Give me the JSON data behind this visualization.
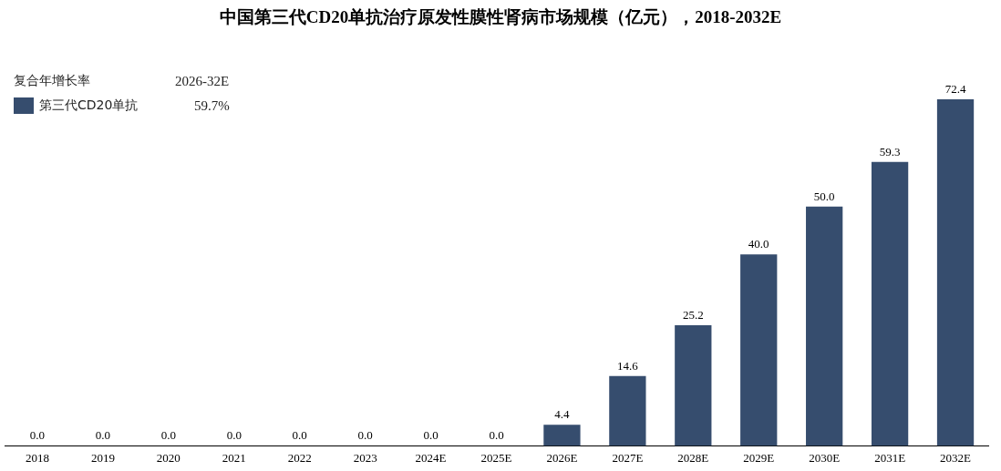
{
  "chart_data": {
    "type": "bar",
    "title": "中国第三代CD20单抗治疗原发性膜性肾病市场规模（亿元），2018-2032E",
    "categories": [
      "2018",
      "2019",
      "2020",
      "2021",
      "2022",
      "2023",
      "2024E",
      "2025E",
      "2026E",
      "2027E",
      "2028E",
      "2029E",
      "2030E",
      "2031E",
      "2032E"
    ],
    "series": [
      {
        "name": "第三代CD20单抗",
        "color": "#364d6e",
        "values": [
          0,
          0,
          0,
          0,
          0,
          0,
          0,
          0,
          4.4,
          14.6,
          25.2,
          40.0,
          50.0,
          59.3,
          72.4
        ],
        "value_labels": [
          "0.0",
          "0.0",
          "0.0",
          "0.0",
          "0.0",
          "0.0",
          "0.0",
          "0.0",
          "4.4",
          "14.6",
          "25.2",
          "40.0",
          "50.0",
          "59.3",
          "72.4"
        ]
      }
    ],
    "legend": "top left",
    "legend_title": "复合年增长率",
    "annotations": [
      "2026-32E",
      "59.7%"
    ],
    "grid": false
  }
}
